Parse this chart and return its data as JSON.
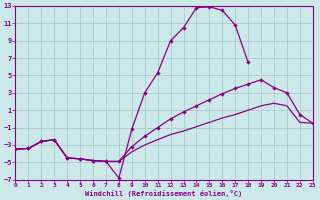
{
  "xlabel": "Windchill (Refroidissement éolien,°C)",
  "bg_color": "#cce8e8",
  "line_color": "#880088",
  "grid_color": "#aacccc",
  "xlim": [
    0,
    23
  ],
  "ylim": [
    -7,
    13
  ],
  "xticks": [
    0,
    1,
    2,
    3,
    4,
    5,
    6,
    7,
    8,
    9,
    10,
    11,
    12,
    13,
    14,
    15,
    16,
    17,
    18,
    19,
    20,
    21,
    22,
    23
  ],
  "yticks": [
    -7,
    -5,
    -3,
    -1,
    1,
    3,
    5,
    7,
    9,
    11,
    13
  ],
  "line1_x": [
    0,
    1,
    2,
    3,
    4,
    5,
    6,
    7,
    8,
    9,
    10,
    11,
    12,
    13,
    14,
    15,
    16,
    17,
    18,
    19,
    20,
    21,
    22,
    23
  ],
  "line1_y": [
    -3.5,
    -3.4,
    -2.6,
    -2.4,
    -4.5,
    -4.6,
    -4.8,
    -4.9,
    -6.8,
    -1.2,
    3.0,
    5.3,
    9.0,
    10.5,
    12.8,
    12.9,
    12.5,
    10.8,
    6.5,
    null,
    null,
    null,
    null,
    null
  ],
  "line2_x": [
    0,
    1,
    2,
    3,
    4,
    5,
    6,
    7,
    8,
    9,
    10,
    11,
    12,
    13,
    14,
    15,
    16,
    17,
    18,
    19,
    20,
    21,
    22,
    23
  ],
  "line2_y": [
    -3.5,
    -3.4,
    -2.6,
    -2.4,
    -4.5,
    -4.6,
    -4.8,
    -4.9,
    -4.9,
    -3.2,
    -2.0,
    -1.0,
    0.0,
    0.8,
    1.5,
    2.2,
    2.9,
    3.5,
    4.0,
    4.5,
    3.6,
    3.0,
    0.5,
    -0.5
  ],
  "line3_x": [
    0,
    1,
    2,
    3,
    4,
    5,
    6,
    7,
    8,
    9,
    10,
    11,
    12,
    13,
    14,
    15,
    16,
    17,
    18,
    19,
    20,
    21,
    22,
    23
  ],
  "line3_y": [
    -3.5,
    -3.4,
    -2.6,
    -2.4,
    -4.5,
    -4.6,
    -4.8,
    -4.9,
    -4.9,
    -3.8,
    -3.0,
    -2.4,
    -1.8,
    -1.4,
    -0.9,
    -0.4,
    0.1,
    0.5,
    1.0,
    1.5,
    1.8,
    1.5,
    -0.4,
    -0.5
  ]
}
